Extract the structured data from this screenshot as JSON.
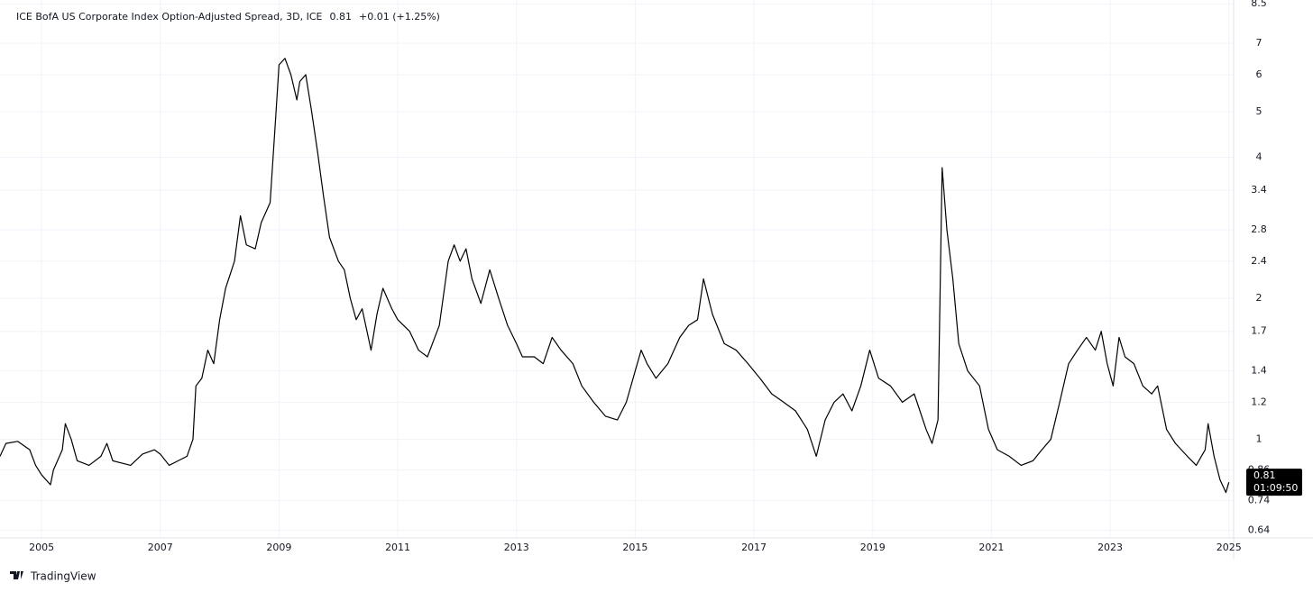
{
  "chart_data": {
    "type": "line",
    "title": "ICE BofA US Corporate Index Option-Adjusted Spread, 3D, ICE",
    "last_value": "0.81",
    "change": "+0.01 (+1.25%)",
    "price_label": {
      "value": 0.81,
      "time": "01:09:50"
    },
    "brand": "TradingView",
    "log_scale": true,
    "grid": true,
    "xlim": [
      2004.3,
      2025.08
    ],
    "xticks": [
      2005,
      2007,
      2009,
      2011,
      2013,
      2015,
      2017,
      2019,
      2021,
      2023,
      2025
    ],
    "ylim": [
      0.616,
      8.66
    ],
    "yticks": [
      0.64,
      0.74,
      0.86,
      1,
      1.2,
      1.4,
      1.7,
      2,
      2.4,
      2.8,
      3.4,
      4,
      5,
      6,
      7,
      8.5
    ],
    "series": [
      {
        "color": "#000000",
        "x": [
          2004.3,
          2004.4,
          2004.6,
          2004.8,
          2004.9,
          2005.0,
          2005.15,
          2005.2,
          2005.35,
          2005.4,
          2005.5,
          2005.6,
          2005.8,
          2006.0,
          2006.1,
          2006.2,
          2006.5,
          2006.7,
          2006.9,
          2007.0,
          2007.15,
          2007.3,
          2007.45,
          2007.55,
          2007.6,
          2007.7,
          2007.8,
          2007.9,
          2008.0,
          2008.1,
          2008.25,
          2008.35,
          2008.45,
          2008.6,
          2008.7,
          2008.85,
          2008.95,
          2009.0,
          2009.1,
          2009.2,
          2009.3,
          2009.35,
          2009.45,
          2009.55,
          2009.65,
          2009.75,
          2009.85,
          2010.0,
          2010.1,
          2010.2,
          2010.3,
          2010.4,
          2010.55,
          2010.65,
          2010.75,
          2010.9,
          2011.0,
          2011.2,
          2011.35,
          2011.5,
          2011.7,
          2011.85,
          2011.95,
          2012.05,
          2012.15,
          2012.25,
          2012.4,
          2012.55,
          2012.7,
          2012.85,
          2013.0,
          2013.1,
          2013.3,
          2013.45,
          2013.6,
          2013.75,
          2013.95,
          2014.1,
          2014.3,
          2014.5,
          2014.7,
          2014.85,
          2015.0,
          2015.1,
          2015.2,
          2015.35,
          2015.55,
          2015.75,
          2015.9,
          2016.05,
          2016.15,
          2016.3,
          2016.5,
          2016.7,
          2016.9,
          2017.1,
          2017.3,
          2017.5,
          2017.7,
          2017.9,
          2018.05,
          2018.2,
          2018.35,
          2018.5,
          2018.65,
          2018.8,
          2018.95,
          2019.1,
          2019.3,
          2019.5,
          2019.7,
          2019.9,
          2020.0,
          2020.1,
          2020.17,
          2020.25,
          2020.35,
          2020.45,
          2020.6,
          2020.8,
          2020.95,
          2021.1,
          2021.3,
          2021.5,
          2021.7,
          2021.85,
          2022.0,
          2022.15,
          2022.3,
          2022.45,
          2022.6,
          2022.75,
          2022.85,
          2022.95,
          2023.05,
          2023.15,
          2023.25,
          2023.4,
          2023.55,
          2023.7,
          2023.8,
          2023.95,
          2024.1,
          2024.3,
          2024.45,
          2024.6,
          2024.65,
          2024.75,
          2024.85,
          2024.95,
          2025.0
        ],
        "values": [
          0.92,
          0.98,
          0.99,
          0.95,
          0.88,
          0.84,
          0.8,
          0.86,
          0.95,
          1.08,
          1.0,
          0.9,
          0.88,
          0.92,
          0.98,
          0.9,
          0.88,
          0.93,
          0.95,
          0.93,
          0.88,
          0.9,
          0.92,
          1.0,
          1.3,
          1.35,
          1.55,
          1.45,
          1.8,
          2.1,
          2.4,
          3.0,
          2.6,
          2.55,
          2.9,
          3.2,
          5.0,
          6.3,
          6.5,
          6.0,
          5.3,
          5.8,
          6.0,
          5.0,
          4.1,
          3.3,
          2.7,
          2.4,
          2.3,
          2.0,
          1.8,
          1.9,
          1.55,
          1.85,
          2.1,
          1.9,
          1.8,
          1.7,
          1.55,
          1.5,
          1.75,
          2.4,
          2.6,
          2.4,
          2.55,
          2.2,
          1.95,
          2.3,
          2.0,
          1.75,
          1.6,
          1.5,
          1.5,
          1.45,
          1.65,
          1.55,
          1.45,
          1.3,
          1.2,
          1.12,
          1.1,
          1.2,
          1.4,
          1.55,
          1.45,
          1.35,
          1.45,
          1.65,
          1.75,
          1.8,
          2.2,
          1.85,
          1.6,
          1.55,
          1.45,
          1.35,
          1.25,
          1.2,
          1.15,
          1.05,
          0.92,
          1.1,
          1.2,
          1.25,
          1.15,
          1.3,
          1.55,
          1.35,
          1.3,
          1.2,
          1.25,
          1.05,
          0.98,
          1.1,
          3.8,
          2.8,
          2.2,
          1.6,
          1.4,
          1.3,
          1.05,
          0.95,
          0.92,
          0.88,
          0.9,
          0.95,
          1.0,
          1.2,
          1.45,
          1.55,
          1.65,
          1.55,
          1.7,
          1.45,
          1.3,
          1.65,
          1.5,
          1.45,
          1.3,
          1.25,
          1.3,
          1.05,
          0.98,
          0.92,
          0.88,
          0.95,
          1.08,
          0.92,
          0.82,
          0.77,
          0.81
        ]
      }
    ]
  }
}
